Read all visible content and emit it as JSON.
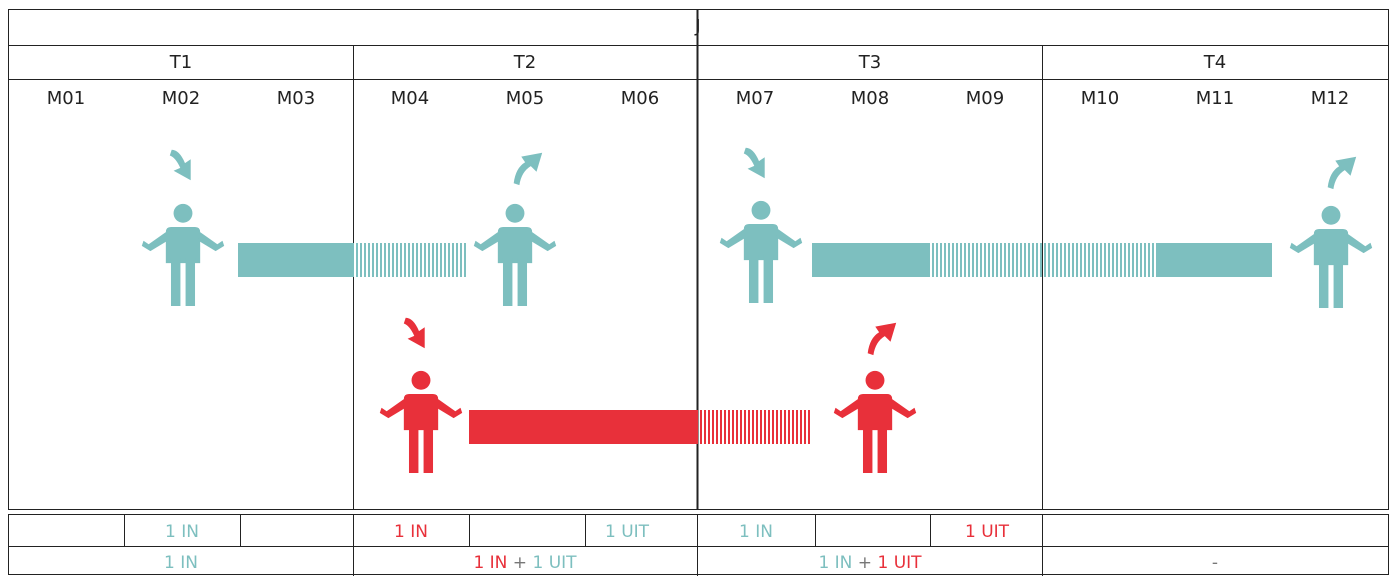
{
  "header": {
    "year": "J"
  },
  "quarters": [
    "T1",
    "T2",
    "T3",
    "T4"
  ],
  "months": [
    "M01",
    "M02",
    "M03",
    "M04",
    "M05",
    "M06",
    "M07",
    "M08",
    "M09",
    "M10",
    "M11",
    "M12"
  ],
  "colors": {
    "teal": "#7dbfbf",
    "red": "#e8303a",
    "line": "#222222",
    "dash": "#777777"
  },
  "icons": [
    "person-icon",
    "arrow-in-icon",
    "arrow-out-icon"
  ],
  "monthly_row": [
    {
      "text": [
        {
          "t": "1 IN",
          "c": "teal"
        }
      ]
    },
    {
      "text": [
        {
          "t": "1 IN",
          "c": "red"
        }
      ]
    },
    {
      "text": [
        {
          "t": "1 UIT",
          "c": "teal"
        }
      ]
    },
    {
      "text": [
        {
          "t": "1 IN",
          "c": "teal"
        }
      ]
    },
    {
      "text": [
        {
          "t": "1 UIT",
          "c": "red"
        }
      ]
    }
  ],
  "quarterly_row": [
    {
      "text": [
        {
          "t": "1 IN",
          "c": "teal"
        }
      ]
    },
    {
      "text": [
        {
          "t": "1 IN",
          "c": "red"
        },
        {
          "t": " + ",
          "c": "dash"
        },
        {
          "t": "1 UIT",
          "c": "teal"
        }
      ]
    },
    {
      "text": [
        {
          "t": "1 IN",
          "c": "teal"
        },
        {
          "t": " + ",
          "c": "dash"
        },
        {
          "t": "1 UIT",
          "c": "red"
        }
      ]
    },
    {
      "text": [
        {
          "t": "-",
          "c": "dash"
        }
      ]
    }
  ]
}
